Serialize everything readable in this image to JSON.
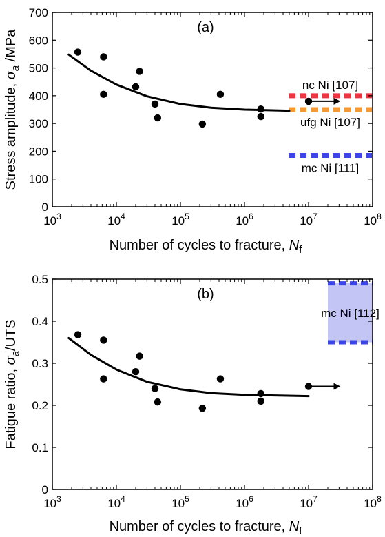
{
  "chart_data": [
    {
      "type": "scatter",
      "panel_label": "(a)",
      "xscale": "log",
      "xlim": [
        1000,
        100000000
      ],
      "ylim": [
        0,
        700
      ],
      "xtick_exponents": [
        "3",
        "4",
        "5",
        "6",
        "7",
        "8"
      ],
      "xtick_base": "10",
      "yticks": [
        "0",
        "100",
        "200",
        "300",
        "400",
        "500",
        "600",
        "700"
      ],
      "xlabel": "Number of cycles to fracture, ",
      "xlabel_var": "N",
      "xlabel_sub": "f",
      "ylabel": "Stress amplitude, ",
      "ylabel_var": "σ",
      "ylabel_sub": "a",
      "ylabel_unit": " /MPa",
      "points": [
        {
          "x": 2500,
          "y": 557
        },
        {
          "x": 6300,
          "y": 540
        },
        {
          "x": 6300,
          "y": 405
        },
        {
          "x": 20000,
          "y": 432
        },
        {
          "x": 23000,
          "y": 488
        },
        {
          "x": 40000,
          "y": 370
        },
        {
          "x": 44000,
          "y": 320
        },
        {
          "x": 220000,
          "y": 298
        },
        {
          "x": 420000,
          "y": 405
        },
        {
          "x": 1800000,
          "y": 352
        },
        {
          "x": 1800000,
          "y": 325
        },
        {
          "x": 10000000,
          "y": 380
        }
      ],
      "runout_arrow": {
        "from": [
          10000000,
          380
        ],
        "to": [
          30000000,
          380
        ]
      },
      "trend": [
        {
          "x": 1800,
          "y": 548
        },
        {
          "x": 4000,
          "y": 490
        },
        {
          "x": 10000,
          "y": 440
        },
        {
          "x": 30000,
          "y": 398
        },
        {
          "x": 100000,
          "y": 370
        },
        {
          "x": 300000,
          "y": 357
        },
        {
          "x": 1000000,
          "y": 350
        },
        {
          "x": 5000000,
          "y": 346
        }
      ],
      "reference_lines": [
        {
          "label": "nc Ni [107]",
          "y": 400,
          "color": "#ee3340",
          "label_position": "above"
        },
        {
          "label": "ufg Ni [107]",
          "y": 350,
          "color": "#f39a34",
          "label_position": "below"
        },
        {
          "label": "mc Ni [111]",
          "y": 185,
          "color": "#3c46e6",
          "label_position": "below"
        }
      ]
    },
    {
      "type": "scatter",
      "panel_label": "(b)",
      "xscale": "log",
      "xlim": [
        1000,
        100000000
      ],
      "ylim": [
        0,
        0.5
      ],
      "xtick_exponents": [
        "3",
        "4",
        "5",
        "6",
        "7",
        "8"
      ],
      "xtick_base": "10",
      "yticks": [
        "0",
        "0.1",
        "0.2",
        "0.3",
        "0.4",
        "0.5"
      ],
      "xlabel": "Number of cycles to fracture, ",
      "xlabel_var": "N",
      "xlabel_sub": "f",
      "ylabel": "Fatigue ratio, ",
      "ylabel_var": "σ",
      "ylabel_sub": "a",
      "ylabel_unit": "/UTS",
      "points": [
        {
          "x": 2500,
          "y": 0.368
        },
        {
          "x": 6300,
          "y": 0.355
        },
        {
          "x": 6300,
          "y": 0.263
        },
        {
          "x": 20000,
          "y": 0.28
        },
        {
          "x": 23000,
          "y": 0.317
        },
        {
          "x": 40000,
          "y": 0.24
        },
        {
          "x": 44000,
          "y": 0.208
        },
        {
          "x": 220000,
          "y": 0.193
        },
        {
          "x": 420000,
          "y": 0.263
        },
        {
          "x": 1800000,
          "y": 0.228
        },
        {
          "x": 1800000,
          "y": 0.21
        },
        {
          "x": 10000000,
          "y": 0.245
        }
      ],
      "runout_arrow": {
        "from": [
          10000000,
          0.245
        ],
        "to": [
          30000000,
          0.245
        ]
      },
      "trend": [
        {
          "x": 1800,
          "y": 0.36
        },
        {
          "x": 4000,
          "y": 0.32
        },
        {
          "x": 10000,
          "y": 0.285
        },
        {
          "x": 30000,
          "y": 0.256
        },
        {
          "x": 100000,
          "y": 0.238
        },
        {
          "x": 300000,
          "y": 0.229
        },
        {
          "x": 1000000,
          "y": 0.225
        },
        {
          "x": 10000000,
          "y": 0.222
        }
      ],
      "reference_band": {
        "label": "mc Ni [112]",
        "x_from": 20000000,
        "x_to": 100000000,
        "y_from": 0.35,
        "y_to": 0.49,
        "fill": "#c3c5f5",
        "edge": "#3c46e6"
      }
    }
  ]
}
